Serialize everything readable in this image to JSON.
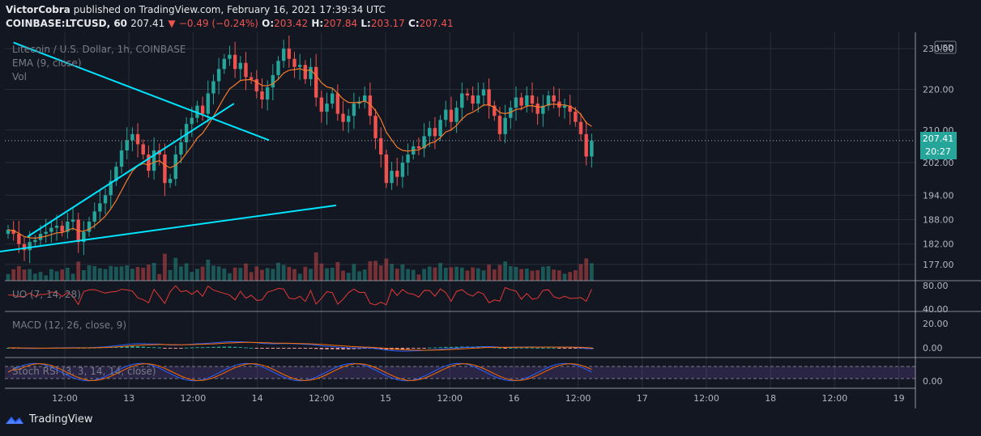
{
  "header": {
    "publisher": "VictorCobra",
    "published_text": "published on TradingView.com, February 16, 2021 17:39:34 UTC",
    "symbol": "COINBASE:LTCUSD, 60",
    "last": "207.41",
    "change_arrow": "▼",
    "change": "−0.49 (−0.24%)",
    "o_label": "O:",
    "o": "203.42",
    "h_label": "H:",
    "h": "207.84",
    "l_label": "L:",
    "l": "203.17",
    "c_label": "C:",
    "c": "207.41"
  },
  "legend": {
    "title": "Litecoin / U.S. Dollar, 1h, COINBASE",
    "ema": "EMA (9, close)",
    "vol": "Vol",
    "currency": "USD"
  },
  "badges": {
    "price": "207.41",
    "countdown": "20:27"
  },
  "panes": {
    "uo": {
      "label": "UO (7, 14, 28)",
      "ticks": [
        "80.00",
        "40.00"
      ]
    },
    "macd": {
      "label": "MACD (12, 26, close, 9)",
      "ticks": [
        "20.00",
        "0.00"
      ]
    },
    "stoch": {
      "label": "Stoch RSI (3, 3, 14, 14, close)",
      "ticks": [
        "0.00"
      ]
    }
  },
  "footer": {
    "brand": "TradingView",
    "logo_icon": "tradingview-logo-icon"
  },
  "colors": {
    "up": "#26a69a",
    "down": "#ef5350",
    "trendline": "#00e5ff",
    "ema": "#f57c2b",
    "background": "#131722"
  },
  "chart_data": {
    "type": "candlestick",
    "title": "Litecoin / U.S. Dollar, 1h, COINBASE",
    "ylim": [
      173,
      234
    ],
    "y_ticks": [
      230,
      220,
      210,
      202,
      194,
      188,
      182,
      177
    ],
    "y_tick_labels": [
      "230.00",
      "220.00",
      "210.00",
      "202.00",
      "194.00",
      "188.00",
      "182.00",
      "177.00"
    ],
    "x_tick_labels": [
      "12:00",
      "13",
      "12:00",
      "14",
      "12:00",
      "15",
      "12:00",
      "16",
      "12:00",
      "17",
      "12:00",
      "18",
      "12:00",
      "19"
    ],
    "current_price": 207.41,
    "close": [
      185.5,
      184.5,
      182.0,
      180.5,
      182.5,
      183.0,
      184.5,
      185.0,
      186.0,
      186.5,
      185.0,
      187.5,
      188.0,
      182.5,
      185.0,
      187.5,
      190.0,
      192.0,
      194.0,
      197.5,
      201.0,
      205.0,
      207.5,
      209.0,
      206.5,
      204.0,
      200.0,
      205.0,
      204.0,
      197.0,
      198.0,
      204.0,
      207.0,
      211.5,
      213.0,
      216.0,
      214.0,
      219.0,
      222.0,
      225.0,
      227.5,
      228.5,
      225.0,
      226.5,
      223.0,
      222.5,
      219.5,
      217.5,
      220.5,
      223.5,
      227.0,
      230.0,
      227.5,
      225.5,
      226.0,
      222.5,
      225.5,
      218.0,
      214.5,
      216.5,
      219.0,
      214.0,
      212.0,
      213.5,
      216.5,
      217.0,
      218.5,
      213.5,
      208.0,
      204.0,
      197.0,
      200.0,
      198.5,
      202.0,
      204.0,
      206.0,
      205.5,
      208.5,
      210.5,
      208.5,
      212.5,
      215.0,
      212.0,
      215.5,
      219.0,
      218.5,
      216.5,
      218.5,
      220.0,
      216.0,
      213.5,
      209.0,
      213.0,
      215.5,
      218.0,
      216.0,
      218.5,
      216.5,
      214.0,
      216.0,
      218.5,
      217.0,
      215.5,
      216.0,
      214.5,
      212.0,
      209.0,
      203.5,
      207.41
    ],
    "lines": [
      {
        "name": "",
        "points": [
          [
            1.0,
            231.5
          ],
          [
            48.3,
            207.5
          ]
        ]
      },
      {
        "name": "",
        "points": [
          [
            3.6,
            183.8
          ],
          [
            41.8,
            216.5
          ]
        ]
      },
      {
        "name": "",
        "points": [
          [
            -21.5,
            176.5
          ],
          [
            60.7,
            191.5
          ]
        ]
      }
    ],
    "volume_scale": "relative",
    "oscillators": {
      "uo": {
        "ylim": [
          35,
          82
        ]
      },
      "macd": {
        "ylim": [
          -6,
          25
        ]
      },
      "stoch_rsi": {
        "band_upper": 80,
        "band_lower": 20
      }
    }
  }
}
